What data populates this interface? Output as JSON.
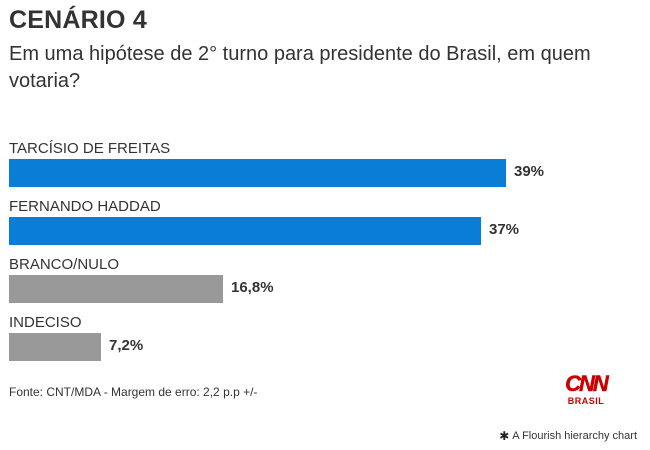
{
  "header": {
    "title": "CENÁRIO 4",
    "subtitle": "Em uma hipótese de 2° turno para presidente do Brasil, em quem votaria?"
  },
  "chart_data": {
    "type": "bar",
    "orientation": "horizontal",
    "title": "CENÁRIO 4",
    "subtitle": "Em uma hipótese de 2° turno para presidente do Brasil, em quem votaria?",
    "categories": [
      "TARCÍSIO DE FREITAS",
      "FERNANDO HADDAD",
      "BRANCO/NULO",
      "INDECISO"
    ],
    "values": [
      39,
      37,
      16.8,
      7.2
    ],
    "value_labels": [
      "39%",
      "37%",
      "16,8%",
      "7,2%"
    ],
    "colors": [
      "#0a7dd6",
      "#0a7dd6",
      "#999999",
      "#999999"
    ],
    "xlim": [
      0,
      39
    ],
    "grid": false,
    "legend": "none"
  },
  "footer": {
    "source": "Fonte: CNT/MDA - Margem de erro: 2,2 p.p +/-",
    "logo_text": "CNN",
    "logo_subtext": "BRASIL",
    "credit": "A Flourish hierarchy chart",
    "credit_icon": "flourish-asterisk-icon"
  }
}
